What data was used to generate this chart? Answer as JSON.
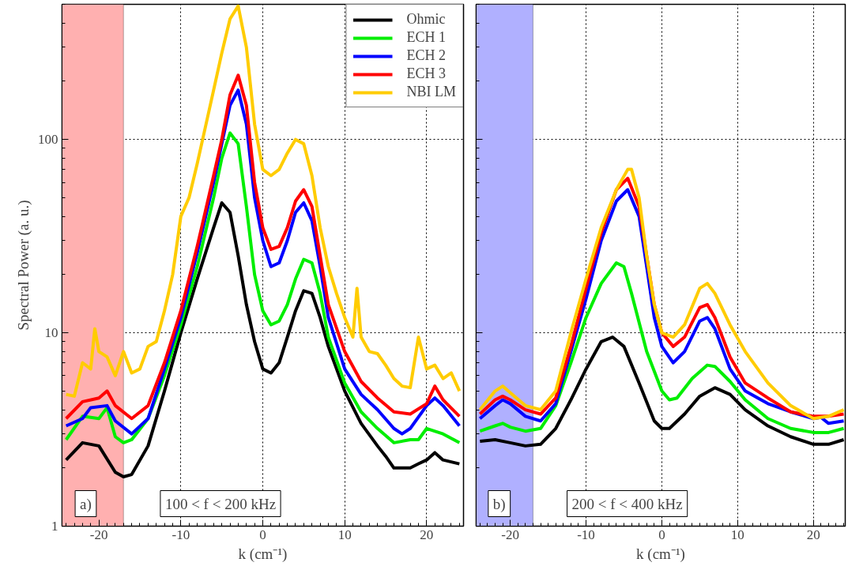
{
  "chart_data": [
    {
      "type": "line",
      "xlabel": "k (cm⁻¹)",
      "ylabel": "Spectral Power (a. u.)",
      "log": "y",
      "grid": true,
      "legend": "top right",
      "line_style": "solid",
      "marker": "none",
      "xlim": [
        -24.5,
        24.5
      ],
      "xticks": [
        -20,
        -10,
        0,
        10,
        20
      ],
      "ylim": [
        1,
        500
      ],
      "yticks": [
        1,
        {
          "value": 2,
          "label": null
        },
        {
          "value": 3,
          "label": null
        },
        {
          "value": 4,
          "label": null
        },
        {
          "value": 5,
          "label": null
        },
        {
          "value": 6,
          "label": null
        },
        {
          "value": 7,
          "label": null
        },
        {
          "value": 8,
          "label": null
        },
        {
          "value": 9,
          "label": null
        },
        10,
        {
          "value": 20,
          "label": null
        },
        {
          "value": 30,
          "label": null
        },
        {
          "value": 40,
          "label": null
        },
        {
          "value": 50,
          "label": null
        },
        {
          "value": 60,
          "label": null
        },
        {
          "value": 70,
          "label": null
        },
        {
          "value": 80,
          "label": null
        },
        {
          "value": 90,
          "label": null
        },
        100,
        {
          "value": 200,
          "label": null
        },
        {
          "value": 300,
          "label": null
        },
        {
          "value": 400,
          "label": null
        },
        {
          "value": 500,
          "label": null
        }
      ],
      "bands": [
        {
          "axis": "x",
          "from": -24.5,
          "to": -17,
          "color": "#ffb0b0"
        }
      ],
      "annotations": [
        "a)",
        "100 < f < 200 kHz"
      ],
      "series": [
        {
          "name": "Ohmic",
          "color": "#000000",
          "x": [
            -24,
            -22,
            -20,
            -18,
            -17,
            -16,
            -14,
            -12,
            -10,
            -8,
            -6,
            -5,
            -4,
            -3,
            -2,
            -1,
            0,
            1,
            2,
            3,
            4,
            5,
            6,
            7,
            8,
            10,
            12,
            14,
            15,
            16,
            18,
            19,
            20,
            21,
            22,
            24
          ],
          "values": [
            2.2,
            2.7,
            2.6,
            1.9,
            1.8,
            1.85,
            2.6,
            5,
            10,
            19,
            35,
            47,
            42,
            25,
            14,
            9,
            6.5,
            6.2,
            7,
            9.5,
            13,
            16.5,
            16,
            12,
            8.5,
            5,
            3.4,
            2.6,
            2.3,
            2.0,
            2.0,
            2.1,
            2.2,
            2.4,
            2.2,
            2.1
          ]
        },
        {
          "name": "ECH 1",
          "color": "#00ee00",
          "x": [
            -24,
            -22,
            -20,
            -19,
            -18,
            -17,
            -16,
            -14,
            -12,
            -10,
            -8,
            -6,
            -5,
            -4,
            -3,
            -2,
            -1,
            0,
            1,
            2,
            3,
            4,
            5,
            6,
            7,
            8,
            10,
            12,
            14,
            16,
            18,
            19,
            20,
            22,
            24
          ],
          "values": [
            2.8,
            3.7,
            3.6,
            4.1,
            2.9,
            2.7,
            2.8,
            3.6,
            6,
            11,
            22,
            50,
            80,
            108,
            95,
            45,
            20,
            13,
            11,
            11.5,
            14,
            19,
            24,
            23,
            16,
            9.5,
            5.5,
            3.9,
            3.2,
            2.7,
            2.8,
            2.8,
            3.2,
            3.0,
            2.7
          ]
        },
        {
          "name": "ECH 2",
          "color": "#0000ff",
          "x": [
            -24,
            -22,
            -21,
            -19,
            -18,
            -16,
            -14,
            -12,
            -10,
            -8,
            -6,
            -5,
            -4,
            -3,
            -2,
            -1,
            0,
            1,
            2,
            3,
            4,
            5,
            6,
            7,
            8,
            10,
            12,
            14,
            16,
            17,
            18,
            20,
            21,
            22,
            24
          ],
          "values": [
            3.3,
            3.6,
            4.1,
            4.2,
            3.5,
            3.0,
            3.6,
            6.5,
            12,
            26,
            60,
            95,
            150,
            180,
            120,
            50,
            30,
            22,
            23,
            30,
            42,
            47,
            38,
            22,
            12,
            6.5,
            4.8,
            4.0,
            3.2,
            3.0,
            3.2,
            4.2,
            4.6,
            4.2,
            3.3
          ]
        },
        {
          "name": "ECH 3",
          "color": "#ff0000",
          "x": [
            -24,
            -22,
            -20,
            -19,
            -18,
            -16,
            -14,
            -12,
            -10,
            -8,
            -6,
            -5,
            -4,
            -3,
            -2,
            -1,
            0,
            1,
            2,
            3,
            4,
            5,
            6,
            7,
            8,
            10,
            12,
            14,
            16,
            18,
            20,
            21,
            22,
            24
          ],
          "values": [
            3.6,
            4.4,
            4.6,
            5.0,
            4.2,
            3.6,
            4.2,
            7,
            13,
            28,
            65,
            100,
            170,
            215,
            150,
            60,
            35,
            27,
            28,
            35,
            48,
            55,
            45,
            25,
            14,
            8,
            5.6,
            4.6,
            3.9,
            3.8,
            4.3,
            5.3,
            4.5,
            3.7
          ]
        },
        {
          "name": "NBI LM",
          "color": "#ffcc00",
          "x": [
            -24,
            -23,
            -22,
            -21,
            -20.5,
            -20,
            -19,
            -18,
            -17,
            -16,
            -15,
            -14,
            -13,
            -12,
            -11,
            -10,
            -9,
            -8,
            -6,
            -5,
            -4,
            -3,
            -2,
            -1,
            0,
            1,
            2,
            3,
            4,
            5,
            6,
            7,
            8,
            9,
            10,
            11,
            11.5,
            12,
            13,
            14,
            15,
            16,
            17,
            18,
            19,
            20,
            21,
            22,
            23,
            24
          ],
          "values": [
            4.8,
            4.7,
            7,
            6.5,
            10.5,
            8,
            7.5,
            6,
            8,
            6.2,
            6.5,
            8.5,
            9,
            13,
            20,
            40,
            50,
            75,
            180,
            280,
            420,
            490,
            300,
            120,
            70,
            65,
            70,
            85,
            100,
            95,
            65,
            35,
            22,
            16,
            12,
            9.5,
            17,
            9.5,
            8,
            7.8,
            6.8,
            5.8,
            5.3,
            5.2,
            9.5,
            6.5,
            6.8,
            5.8,
            6.2,
            5.0
          ]
        }
      ]
    },
    {
      "type": "line",
      "xlabel": "k (cm⁻¹)",
      "log": "y",
      "grid": true,
      "tick_labels": "x",
      "line_style": "solid",
      "marker": "none",
      "xlim": [
        -24.5,
        24.2
      ],
      "xticks": [
        -20,
        -10,
        0,
        10,
        20
      ],
      "ylim": [
        1,
        500
      ],
      "yticks": [
        1,
        {
          "value": 2,
          "label": null
        },
        {
          "value": 3,
          "label": null
        },
        {
          "value": 4,
          "label": null
        },
        {
          "value": 5,
          "label": null
        },
        {
          "value": 6,
          "label": null
        },
        {
          "value": 7,
          "label": null
        },
        {
          "value": 8,
          "label": null
        },
        {
          "value": 9,
          "label": null
        },
        10,
        {
          "value": 20,
          "label": null
        },
        {
          "value": 30,
          "label": null
        },
        {
          "value": 40,
          "label": null
        },
        {
          "value": 50,
          "label": null
        },
        {
          "value": 60,
          "label": null
        },
        {
          "value": 70,
          "label": null
        },
        {
          "value": 80,
          "label": null
        },
        {
          "value": 90,
          "label": null
        },
        100,
        {
          "value": 200,
          "label": null
        },
        {
          "value": 300,
          "label": null
        },
        {
          "value": 400,
          "label": null
        },
        {
          "value": 500,
          "label": null
        }
      ],
      "bands": [
        {
          "axis": "x",
          "from": -24.5,
          "to": -17,
          "color": "#b0b0ff"
        }
      ],
      "annotations": [
        "b)",
        "200 < f < 400 kHz"
      ],
      "series": [
        {
          "color": "#000000",
          "x": [
            -24,
            -22,
            -20,
            -18,
            -16,
            -14,
            -12,
            -10,
            -8,
            -6.5,
            -5,
            -3,
            -1,
            0,
            1,
            3,
            5,
            7,
            9,
            11,
            14,
            17,
            20,
            22,
            24
          ],
          "values": [
            2.75,
            2.8,
            2.7,
            2.6,
            2.65,
            3.2,
            4.5,
            6.5,
            9,
            9.5,
            8.5,
            5.5,
            3.5,
            3.2,
            3.2,
            3.8,
            4.7,
            5.2,
            4.8,
            4.0,
            3.3,
            2.9,
            2.65,
            2.65,
            2.8
          ]
        },
        {
          "color": "#00ee00",
          "x": [
            -24,
            -22,
            -21,
            -20,
            -18,
            -16,
            -14,
            -12,
            -10,
            -8,
            -6,
            -5,
            -4,
            -2,
            0,
            1,
            2,
            4,
            6,
            7,
            9,
            11,
            14,
            17,
            20,
            22,
            24
          ],
          "values": [
            3.1,
            3.3,
            3.4,
            3.25,
            3.1,
            3.2,
            4.2,
            7,
            12,
            18,
            23,
            22,
            16,
            8,
            5,
            4.5,
            4.6,
            5.8,
            6.8,
            6.7,
            5.6,
            4.5,
            3.6,
            3.2,
            3.05,
            3.05,
            3.2
          ]
        },
        {
          "color": "#0000ff",
          "x": [
            -24,
            -22,
            -21,
            -20,
            -18,
            -16,
            -14,
            -12,
            -10,
            -8,
            -6,
            -4.5,
            -3,
            -2,
            -1,
            0,
            1.5,
            3,
            5,
            6,
            7,
            9,
            11,
            14,
            17,
            20,
            21,
            22,
            24
          ],
          "values": [
            3.6,
            4.2,
            4.5,
            4.3,
            3.7,
            3.5,
            4.3,
            8,
            15,
            30,
            48,
            55,
            40,
            22,
            12,
            8.5,
            7,
            8,
            11.5,
            12,
            10.5,
            6.5,
            5.0,
            4.3,
            3.9,
            3.6,
            3.65,
            3.4,
            3.5
          ]
        },
        {
          "color": "#ff0000",
          "x": [
            -24,
            -22,
            -21,
            -20,
            -18,
            -16,
            -14,
            -12,
            -10,
            -8,
            -6,
            -4.5,
            -3,
            -2,
            -1,
            0,
            1.5,
            3,
            5,
            6,
            7,
            9,
            11,
            14,
            17,
            20,
            22,
            24
          ],
          "values": [
            3.8,
            4.5,
            4.7,
            4.5,
            4.0,
            3.8,
            4.6,
            8.5,
            17,
            33,
            55,
            63,
            45,
            25,
            14,
            10,
            8.5,
            9.5,
            13.5,
            14,
            12,
            7.5,
            5.5,
            4.6,
            3.9,
            3.7,
            3.7,
            3.8
          ]
        },
        {
          "color": "#ffcc00",
          "x": [
            -24,
            -22,
            -21,
            -20,
            -18,
            -16,
            -14,
            -12,
            -10,
            -8,
            -6,
            -4.5,
            -4,
            -3,
            -2,
            -1,
            0,
            1.5,
            3,
            5,
            6,
            7,
            9,
            11,
            14,
            17,
            20,
            22,
            24
          ],
          "values": [
            4.0,
            5.0,
            5.3,
            4.9,
            4.2,
            4.0,
            5.0,
            10,
            19,
            35,
            55,
            70,
            70,
            50,
            25,
            14,
            10,
            9.5,
            11,
            17,
            18,
            16,
            11,
            8,
            5.5,
            4.2,
            3.6,
            3.7,
            4.0
          ]
        }
      ]
    }
  ]
}
